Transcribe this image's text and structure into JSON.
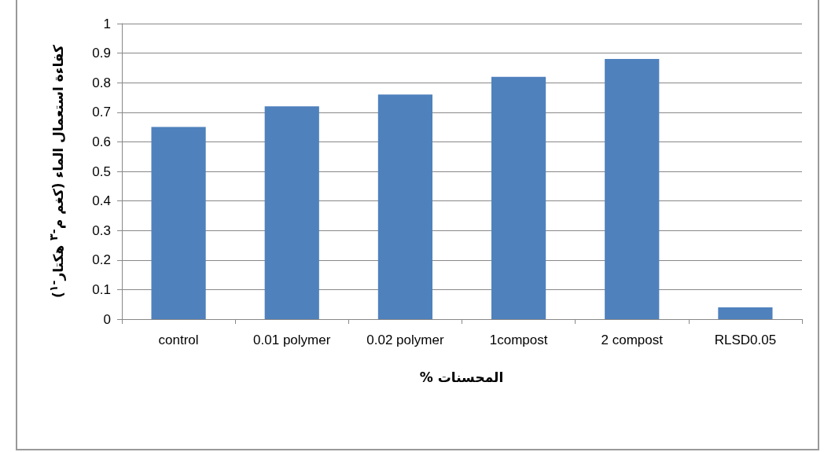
{
  "chart_data": {
    "type": "bar",
    "xlabel": "المحسنات %",
    "ylabel": "كفاءة استعمال الماء (كغم م$^{-٣}$ هكتار$^{-١}$)",
    "categories": [
      "control",
      "0.01 polymer",
      "0.02 polymer",
      "1compost",
      "2 compost",
      "RLSD0.05"
    ],
    "values": [
      0.65,
      0.72,
      0.76,
      0.82,
      0.88,
      0.04
    ],
    "color": "#4f81bd",
    "ylim": [
      0,
      1
    ],
    "yticks": [
      0,
      0.1,
      0.2,
      0.3,
      0.4,
      0.5,
      0.6,
      0.7,
      0.8,
      0.9,
      1
    ],
    "grid": "y"
  }
}
